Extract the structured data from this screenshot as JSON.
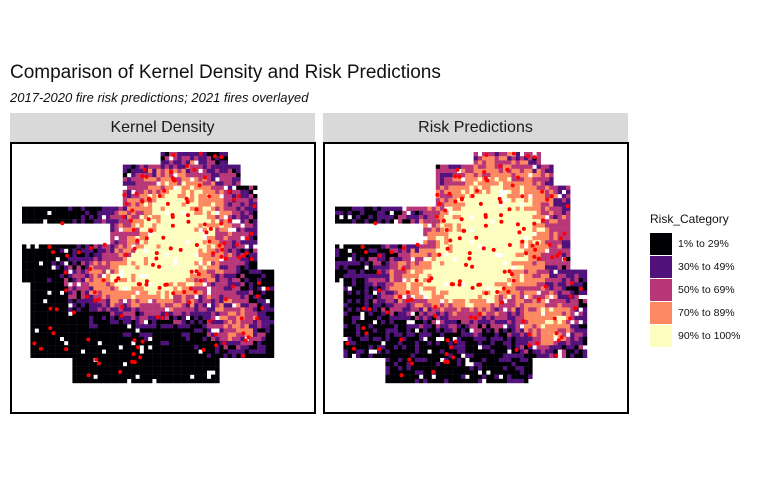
{
  "title": "Comparison of Kernel Density and Risk Predictions",
  "subtitle": "2017-2020 fire risk predictions; 2021 fires overlayed",
  "panels": [
    {
      "label": "Kernel Density",
      "seed": 11,
      "bias": 0.05
    },
    {
      "label": "Risk Predictions",
      "seed": 47,
      "bias": 0.18
    }
  ],
  "legend": {
    "title": "Risk_Category",
    "items": [
      {
        "label": "1% to 29%",
        "color": "#000004"
      },
      {
        "label": "30% to 49%",
        "color": "#51127c"
      },
      {
        "label": "50% to 69%",
        "color": "#b73779"
      },
      {
        "label": "70% to 89%",
        "color": "#fc8961"
      },
      {
        "label": "90% to 100%",
        "color": "#fcfdbf"
      }
    ]
  },
  "fire_point_color": "#ff0000"
}
